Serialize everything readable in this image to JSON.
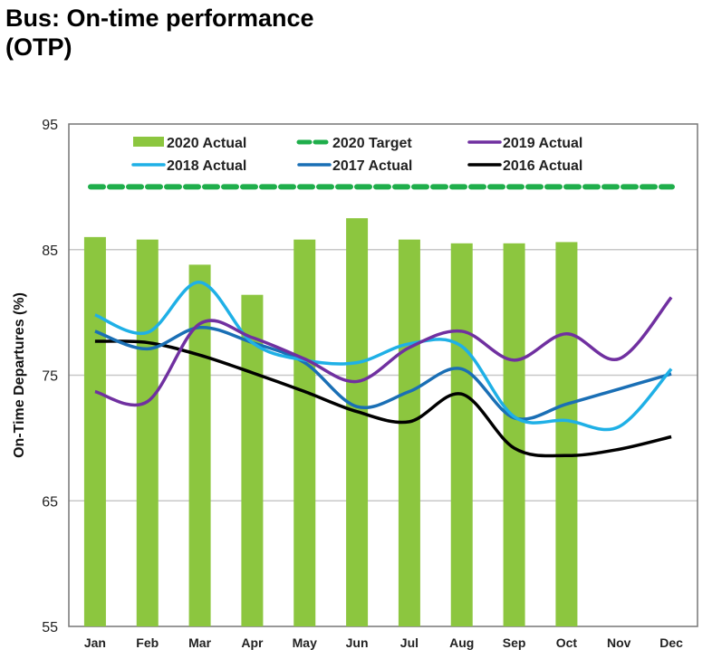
{
  "title": "Bus: On-time performance (OTP)",
  "chart_data": {
    "type": "bar+line",
    "title": "Bus: On-time performance (OTP)",
    "xlabel": "",
    "ylabel": "On-Time Departures (%)",
    "ylim": [
      55,
      95
    ],
    "yticks": [
      55,
      65,
      75,
      85,
      95
    ],
    "grid": true,
    "legend": "top",
    "categories": [
      "Jan",
      "Feb",
      "Mar",
      "Apr",
      "May",
      "Jun",
      "Jul",
      "Aug",
      "Sep",
      "Oct",
      "Nov",
      "Dec"
    ],
    "series": [
      {
        "name": "2020 Actual",
        "kind": "bar",
        "color": "#8cc63f",
        "values": [
          86.0,
          85.8,
          83.8,
          81.4,
          85.8,
          87.5,
          85.8,
          85.5,
          85.5,
          85.6,
          null,
          null
        ]
      },
      {
        "name": "2020 Target",
        "kind": "dashed-line",
        "color": "#1fae4b",
        "values": [
          90,
          90,
          90,
          90,
          90,
          90,
          90,
          90,
          90,
          90,
          90,
          90
        ]
      },
      {
        "name": "2019 Actual",
        "kind": "line",
        "color": "#7030a0",
        "values": [
          73.7,
          72.9,
          79.1,
          78.0,
          76.3,
          74.5,
          77.2,
          78.5,
          76.2,
          78.3,
          76.3,
          81.2
        ]
      },
      {
        "name": "2018 Actual",
        "kind": "line",
        "color": "#1fb0e6",
        "values": [
          79.8,
          78.4,
          82.4,
          77.6,
          76.2,
          76.0,
          77.5,
          77.3,
          71.7,
          71.4,
          70.9,
          75.5
        ]
      },
      {
        "name": "2017 Actual",
        "kind": "line",
        "color": "#1a6fb5",
        "values": [
          78.5,
          77.1,
          78.8,
          77.6,
          76.0,
          72.5,
          73.7,
          75.5,
          71.6,
          72.7,
          73.9,
          75.1
        ]
      },
      {
        "name": "2016 Actual",
        "kind": "line",
        "color": "#000000",
        "values": [
          77.7,
          77.6,
          76.6,
          75.2,
          73.7,
          72.1,
          71.3,
          73.5,
          69.2,
          68.6,
          69.1,
          70.1
        ]
      }
    ]
  }
}
